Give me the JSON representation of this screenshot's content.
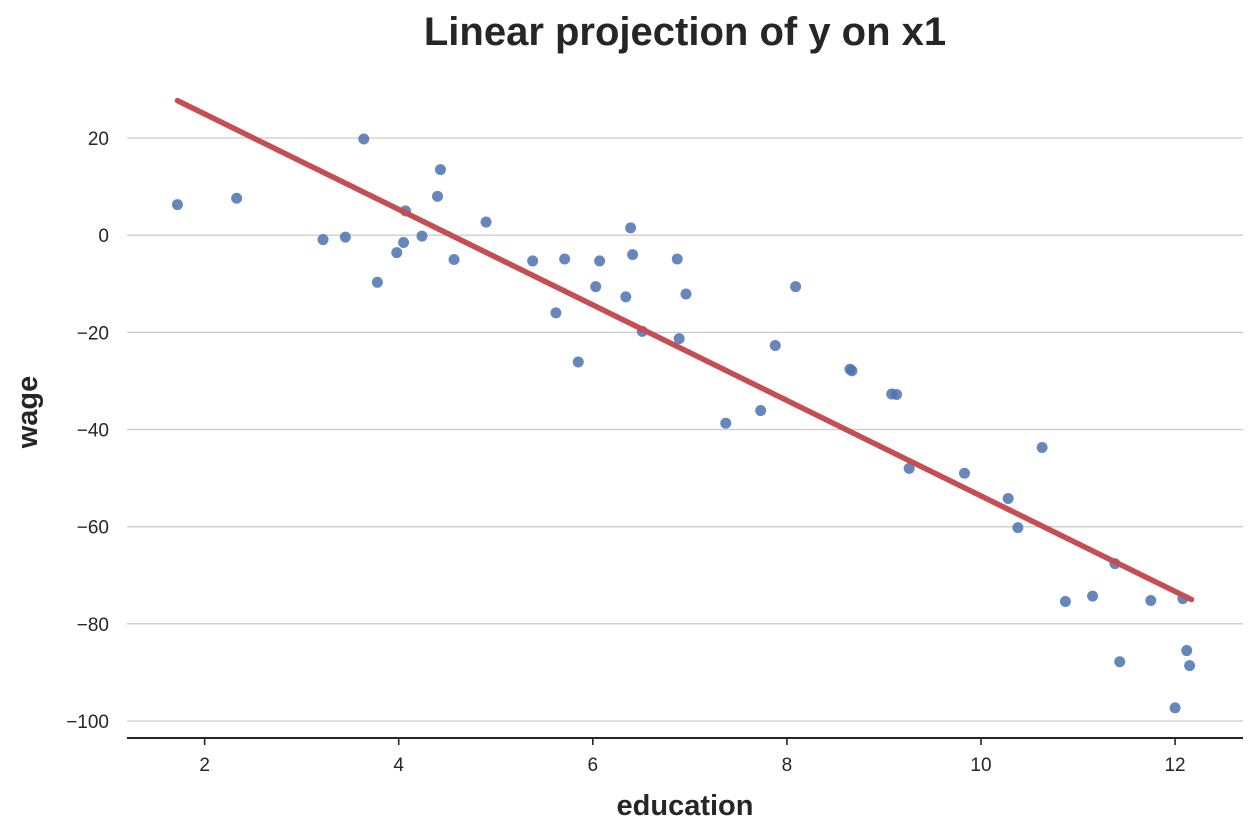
{
  "chart_data": {
    "type": "scatter",
    "title": "Linear projection of y on x1",
    "xlabel": "education",
    "ylabel": "wage",
    "xlim": [
      1.2,
      12.7
    ],
    "ylim": [
      -103.5,
      34
    ],
    "xticks": [
      2,
      4,
      6,
      8,
      10,
      12
    ],
    "xtick_labels": [
      "2",
      "4",
      "6",
      "8",
      "10",
      "12"
    ],
    "yticks": [
      -100,
      -80,
      -60,
      -40,
      -20,
      0,
      20
    ],
    "ytick_labels": [
      "−100",
      "−80",
      "−60",
      "−40",
      "−20",
      "0",
      "20"
    ],
    "grid": "horizontal",
    "points": [
      [
        1.72,
        6.3
      ],
      [
        2.33,
        7.6
      ],
      [
        3.22,
        -0.9
      ],
      [
        3.45,
        -0.4
      ],
      [
        3.64,
        19.8
      ],
      [
        3.78,
        -9.7
      ],
      [
        3.98,
        -3.6
      ],
      [
        4.05,
        -1.5
      ],
      [
        4.07,
        5.0
      ],
      [
        4.24,
        -0.2
      ],
      [
        4.4,
        8.0
      ],
      [
        4.43,
        13.5
      ],
      [
        4.57,
        -5.0
      ],
      [
        4.9,
        2.7
      ],
      [
        5.38,
        -5.3
      ],
      [
        5.62,
        -16.0
      ],
      [
        5.71,
        -4.9
      ],
      [
        5.85,
        -26.1
      ],
      [
        6.03,
        -10.6
      ],
      [
        6.07,
        -5.3
      ],
      [
        6.34,
        -12.7
      ],
      [
        6.39,
        1.5
      ],
      [
        6.41,
        -4.0
      ],
      [
        6.51,
        -19.8
      ],
      [
        6.87,
        -4.9
      ],
      [
        6.89,
        -21.3
      ],
      [
        6.96,
        -12.1
      ],
      [
        7.37,
        -38.7
      ],
      [
        7.73,
        -36.1
      ],
      [
        7.88,
        -22.7
      ],
      [
        8.09,
        -10.6
      ],
      [
        8.65,
        -27.6
      ],
      [
        8.67,
        -27.9
      ],
      [
        9.08,
        -32.7
      ],
      [
        9.13,
        -32.8
      ],
      [
        9.26,
        -48.0
      ],
      [
        9.83,
        -49.0
      ],
      [
        10.28,
        -54.2
      ],
      [
        10.38,
        -60.2
      ],
      [
        10.63,
        -43.7
      ],
      [
        10.87,
        -75.4
      ],
      [
        11.15,
        -74.3
      ],
      [
        11.38,
        -67.6
      ],
      [
        11.43,
        -87.8
      ],
      [
        11.75,
        -75.2
      ],
      [
        12.0,
        -97.3
      ],
      [
        12.08,
        -74.8
      ],
      [
        12.12,
        -85.5
      ],
      [
        12.15,
        -88.6
      ]
    ],
    "fit_line": {
      "x": [
        1.72,
        12.17
      ],
      "y": [
        27.7,
        -75.0
      ]
    },
    "colors": {
      "points": "#4c72b0",
      "fit_line": "#c44e52"
    }
  }
}
